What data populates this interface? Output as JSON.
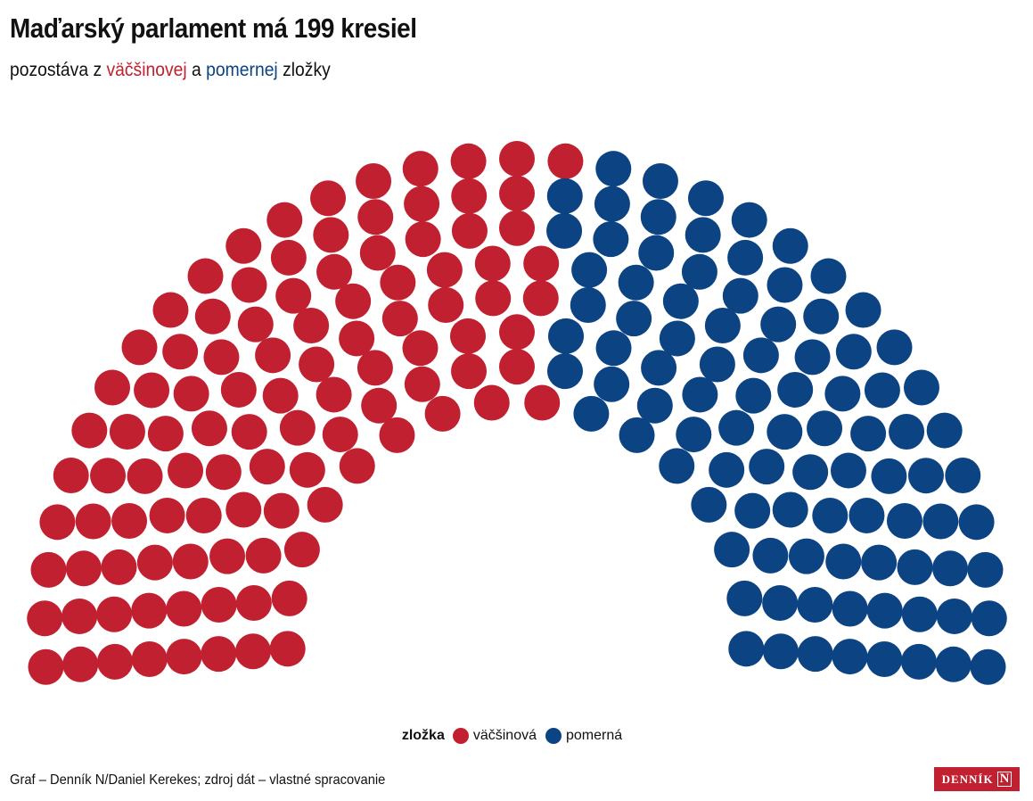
{
  "header": {
    "title": "Maďarský parlament má 199 kresiel",
    "subtitle_prefix": "pozostáva z ",
    "subtitle_majority": "väčšinovej",
    "subtitle_middle": " a ",
    "subtitle_proportional": "pomernej",
    "subtitle_suffix": " zložky"
  },
  "chart_data": {
    "type": "parliament",
    "total_seats": 199,
    "rows": 8,
    "legend_title": "zložka",
    "series": [
      {
        "name": "väčšinová",
        "seats": 106,
        "color": "#c0202f"
      },
      {
        "name": "pomerná",
        "seats": 93,
        "color": "#0b4383"
      }
    ]
  },
  "footer": {
    "credit": "Graf – Denník N/Daniel Kerekes; zdroj dát – vlastné spracovanie",
    "logo_text": "DENNÍK",
    "logo_mark": "N"
  },
  "colors": {
    "majority": "#c0202f",
    "proportional": "#0b4383"
  }
}
